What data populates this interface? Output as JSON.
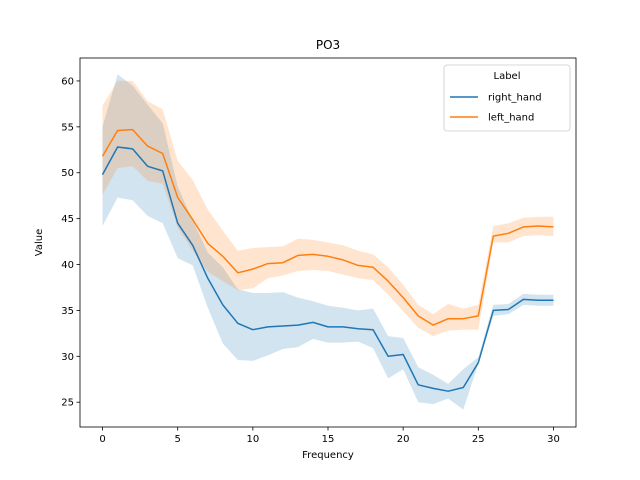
{
  "chart_data": {
    "type": "line",
    "title": "PO3",
    "xlabel": "Frequency",
    "ylabel": "Value",
    "xlim": [
      -1.5,
      31.5
    ],
    "ylim": [
      22.3,
      62.5
    ],
    "xticks": [
      0,
      5,
      10,
      15,
      20,
      25,
      30
    ],
    "yticks": [
      25,
      30,
      35,
      40,
      45,
      50,
      55,
      60
    ],
    "grid": false,
    "legend": {
      "title": "Label",
      "placement": "top-right"
    },
    "x": [
      0,
      1,
      2,
      3,
      4,
      5,
      6,
      7,
      8,
      9,
      10,
      11,
      12,
      13,
      14,
      15,
      16,
      17,
      18,
      19,
      20,
      21,
      22,
      23,
      24,
      25,
      26,
      27,
      28,
      29,
      30
    ],
    "series": [
      {
        "name": "right_hand",
        "color": "#1f77b4",
        "values": [
          49.8,
          52.8,
          52.6,
          50.7,
          50.2,
          44.5,
          42.1,
          38.5,
          35.6,
          33.6,
          32.9,
          33.2,
          33.3,
          33.4,
          33.7,
          33.2,
          33.2,
          33.0,
          32.9,
          30.0,
          30.2,
          26.9,
          26.5,
          26.2,
          26.6,
          29.3,
          35.0,
          35.1,
          36.2,
          36.1,
          36.1
        ],
        "ci_lower": [
          44.2,
          47.3,
          47.0,
          45.3,
          44.5,
          40.7,
          39.9,
          35.3,
          31.4,
          29.6,
          29.5,
          30.1,
          30.8,
          31.0,
          31.9,
          31.5,
          31.5,
          31.6,
          30.9,
          27.6,
          28.6,
          25.0,
          24.8,
          25.4,
          24.2,
          29.2,
          34.4,
          34.6,
          35.6,
          35.5,
          35.5
        ],
        "ci_upper": [
          55.0,
          60.7,
          59.5,
          57.4,
          55.4,
          48.5,
          44.8,
          41.3,
          39.7,
          37.3,
          36.9,
          36.9,
          37.0,
          36.4,
          36.0,
          35.5,
          35.3,
          35.0,
          35.2,
          32.2,
          32.0,
          28.8,
          28.0,
          27.0,
          28.6,
          29.9,
          35.6,
          35.7,
          36.8,
          36.7,
          36.7
        ]
      },
      {
        "name": "left_hand",
        "color": "#ff7f0e",
        "values": [
          51.8,
          54.6,
          54.7,
          52.9,
          52.1,
          47.3,
          44.9,
          42.3,
          40.9,
          39.1,
          39.5,
          40.1,
          40.2,
          41.0,
          41.1,
          40.9,
          40.5,
          39.9,
          39.7,
          38.2,
          36.4,
          34.4,
          33.4,
          34.1,
          34.1,
          34.4,
          43.1,
          43.4,
          44.1,
          44.2,
          44.1
        ],
        "ci_lower": [
          47.6,
          50.5,
          50.7,
          49.1,
          48.8,
          44.0,
          41.5,
          39.2,
          38.2,
          37.2,
          37.4,
          38.5,
          38.8,
          39.3,
          39.4,
          39.3,
          38.9,
          38.5,
          38.3,
          36.7,
          34.9,
          33.1,
          32.2,
          32.8,
          32.9,
          32.9,
          42.4,
          42.4,
          43.1,
          43.2,
          43.1
        ],
        "ci_upper": [
          57.3,
          60.0,
          60.0,
          57.8,
          56.9,
          51.3,
          49.2,
          46.0,
          43.7,
          41.5,
          41.8,
          41.9,
          42.0,
          42.8,
          42.7,
          42.4,
          42.1,
          41.5,
          41.1,
          39.7,
          37.8,
          35.6,
          34.6,
          35.7,
          35.2,
          35.6,
          44.2,
          44.5,
          45.1,
          45.2,
          45.2
        ]
      }
    ]
  }
}
